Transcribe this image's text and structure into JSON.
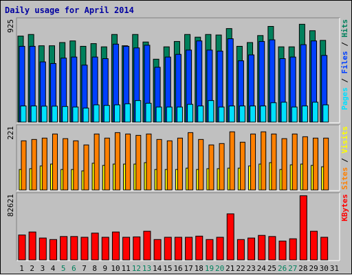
{
  "chart_data": {
    "type": "bar",
    "title": "Daily usage for April 2014",
    "days": [
      "1",
      "2",
      "3",
      "4",
      "5",
      "6",
      "7",
      "8",
      "9",
      "10",
      "11",
      "12",
      "13",
      "14",
      "15",
      "16",
      "17",
      "18",
      "19",
      "20",
      "21",
      "22",
      "23",
      "24",
      "25",
      "26",
      "27",
      "28",
      "29",
      "30",
      "31"
    ],
    "weekend_days": [
      "5",
      "6",
      "12",
      "13",
      "19",
      "20",
      "26",
      "27"
    ],
    "colors": {
      "hits": "#00805c",
      "files": "#0040ff",
      "pages": "#00e0ff",
      "visits": "#ffff00",
      "sites": "#ff8000",
      "kbytes": "#ff0000",
      "weekday_label": "#000000",
      "weekend_label": "#00805c",
      "title": "#0000a0"
    },
    "panels": [
      {
        "id": "top",
        "scale_label": "925",
        "max": 925,
        "series": [
          {
            "name": "Hits",
            "color": "#00805c",
            "values": [
              800,
              815,
              710,
              710,
              740,
              755,
              705,
              730,
              700,
              815,
              710,
              815,
              745,
              585,
              700,
              750,
              815,
              790,
              815,
              810,
              870,
              705,
              740,
              805,
              890,
              700,
              700,
              910,
              850,
              760
            ]
          },
          {
            "name": "Files",
            "color": "#0040ff",
            "values": [
              705,
              705,
              560,
              545,
              595,
              605,
              530,
              605,
              590,
              725,
              705,
              690,
              715,
              510,
              605,
              630,
              670,
              755,
              670,
              660,
              775,
              570,
              625,
              750,
              765,
              590,
              605,
              720,
              755,
              620
            ]
          },
          {
            "name": "Pages",
            "color": "#00e0ff",
            "values": [
              150,
              150,
              148,
              148,
              145,
              140,
              130,
              160,
              155,
              160,
              170,
              200,
              175,
              140,
              140,
              140,
              165,
              150,
              200,
              140,
              150,
              150,
              150,
              150,
              180,
              185,
              140,
              150,
              185,
              160
            ]
          }
        ]
      },
      {
        "id": "middle",
        "scale_label": "221",
        "max": 221,
        "series": [
          {
            "name": "Visits",
            "color": "#ffff00",
            "values": [
              75,
              78,
              88,
              95,
              75,
              75,
              70,
              98,
              90,
              95,
              95,
              95,
              100,
              75,
              75,
              75,
              80,
              75,
              78,
              78,
              80,
              80,
              88,
              95,
              100,
              75,
              92,
              95,
              90,
              85
            ]
          },
          {
            "name": "Sites",
            "color": "#ff8000",
            "values": [
              180,
              185,
              190,
              205,
              188,
              180,
              165,
              205,
              190,
              210,
              205,
              200,
              205,
              185,
              180,
              190,
              210,
              185,
              165,
              170,
              213,
              175,
              205,
              213,
              205,
              188,
              205,
              195,
              190,
              190
            ]
          }
        ]
      },
      {
        "id": "bottom",
        "scale_label": "82621",
        "max": 82621,
        "series": [
          {
            "name": "KBytes",
            "color": "#ff0000",
            "values": [
              33000,
              37000,
              29000,
              27000,
              31000,
              31000,
              30000,
              35500,
              30000,
              37000,
              30000,
              30500,
              38000,
              27000,
              30000,
              30000,
              30000,
              31500,
              27000,
              30000,
              61000,
              27000,
              29000,
              32500,
              31000,
              25000,
              28000,
              85000,
              38000,
              30000
            ]
          }
        ]
      }
    ],
    "right_labels": [
      {
        "panel": "top",
        "parts": [
          {
            "text": "Pages",
            "color": "#00e0ff"
          },
          {
            "text": " / ",
            "color": "#000000"
          },
          {
            "text": "Files",
            "color": "#0040ff"
          },
          {
            "text": " / ",
            "color": "#000000"
          },
          {
            "text": "Hits",
            "color": "#00805c"
          }
        ]
      },
      {
        "panel": "middle",
        "parts": [
          {
            "text": "Sites",
            "color": "#ff8000"
          },
          {
            "text": " / ",
            "color": "#000000"
          },
          {
            "text": "Visits",
            "color": "#ffff00"
          }
        ]
      },
      {
        "panel": "bottom",
        "parts": [
          {
            "text": "KBytes",
            "color": "#ff0000"
          }
        ]
      }
    ]
  }
}
